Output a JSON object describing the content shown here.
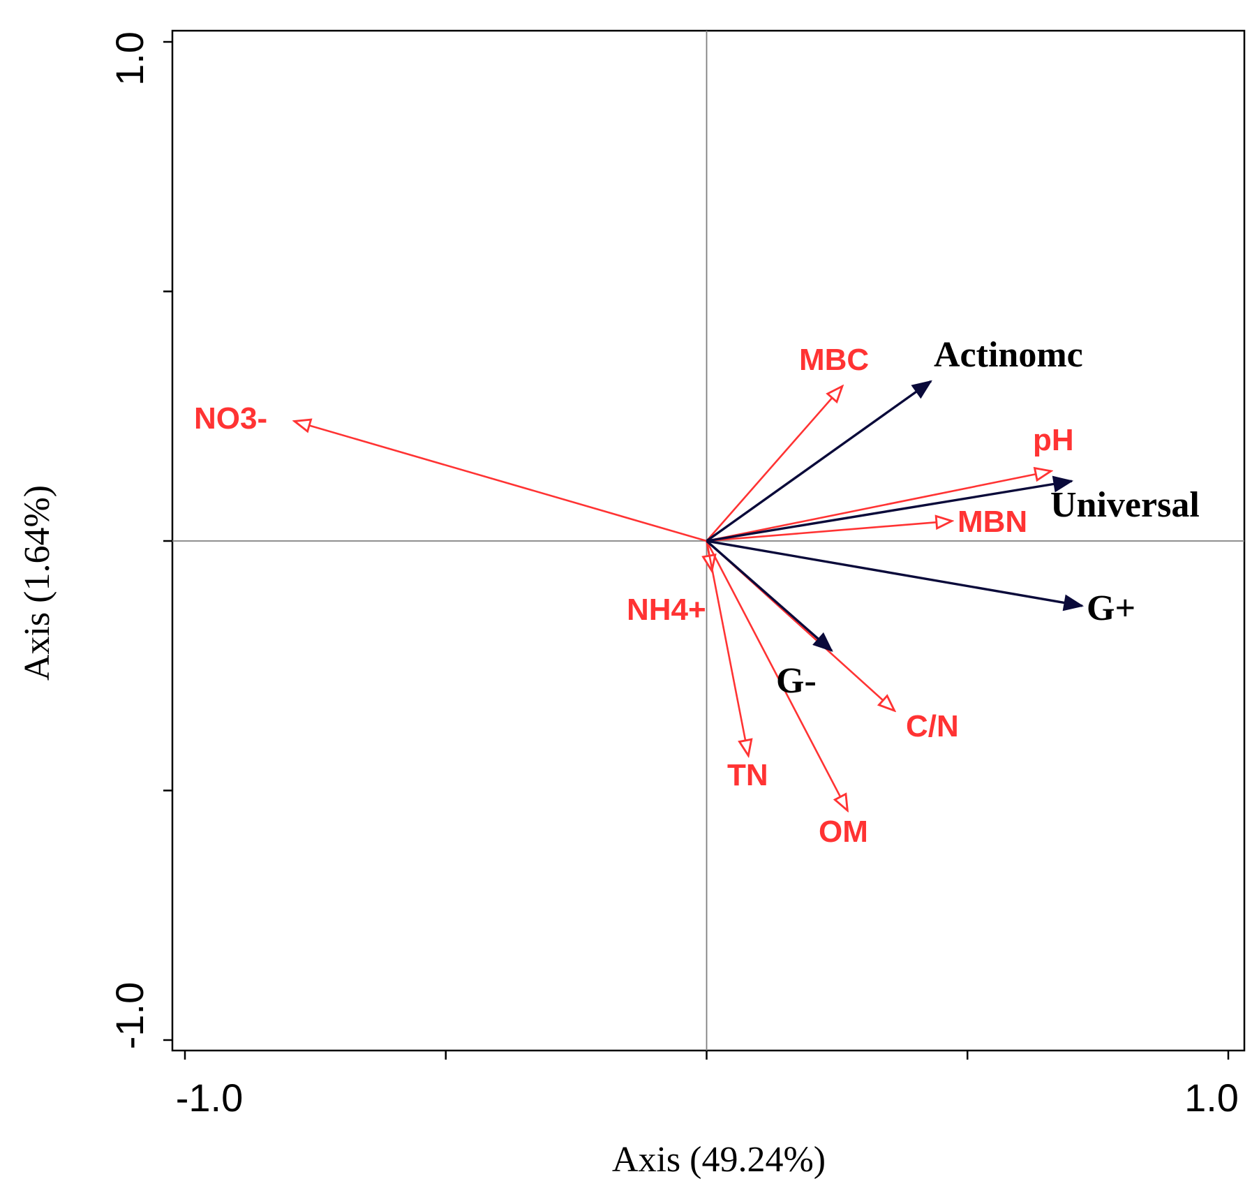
{
  "chart_data": {
    "type": "biplot",
    "xlabel": "Axis (49.24%)",
    "ylabel": "Axis (1.64%)",
    "xlim": [
      -1.0,
      1.0
    ],
    "ylim": [
      -1.0,
      1.0
    ],
    "x_tick_labels": [
      "-1.0",
      "1.0"
    ],
    "y_tick_labels": [
      "1.0",
      "-1.0"
    ],
    "colors": {
      "environmental": "#ff3333",
      "species": "#0a0a3a",
      "frame": "#000000",
      "reference_lines": "#808080"
    },
    "environmental_vectors": [
      {
        "name": "NO3-",
        "x": -0.79,
        "y": 0.24
      },
      {
        "name": "MBC",
        "x": 0.26,
        "y": 0.31
      },
      {
        "name": "pH",
        "x": 0.66,
        "y": 0.14
      },
      {
        "name": "MBN",
        "x": 0.47,
        "y": 0.04
      },
      {
        "name": "NH4+",
        "x": 0.01,
        "y": -0.06
      },
      {
        "name": "TN",
        "x": 0.08,
        "y": -0.43
      },
      {
        "name": "OM",
        "x": 0.27,
        "y": -0.54
      },
      {
        "name": "C/N",
        "x": 0.36,
        "y": -0.34
      }
    ],
    "species_vectors": [
      {
        "name": "Actinomc",
        "x": 0.43,
        "y": 0.32
      },
      {
        "name": "Universal",
        "x": 0.7,
        "y": 0.12
      },
      {
        "name": "G+",
        "x": 0.72,
        "y": -0.13
      },
      {
        "name": "G-",
        "x": 0.24,
        "y": -0.22
      }
    ]
  }
}
